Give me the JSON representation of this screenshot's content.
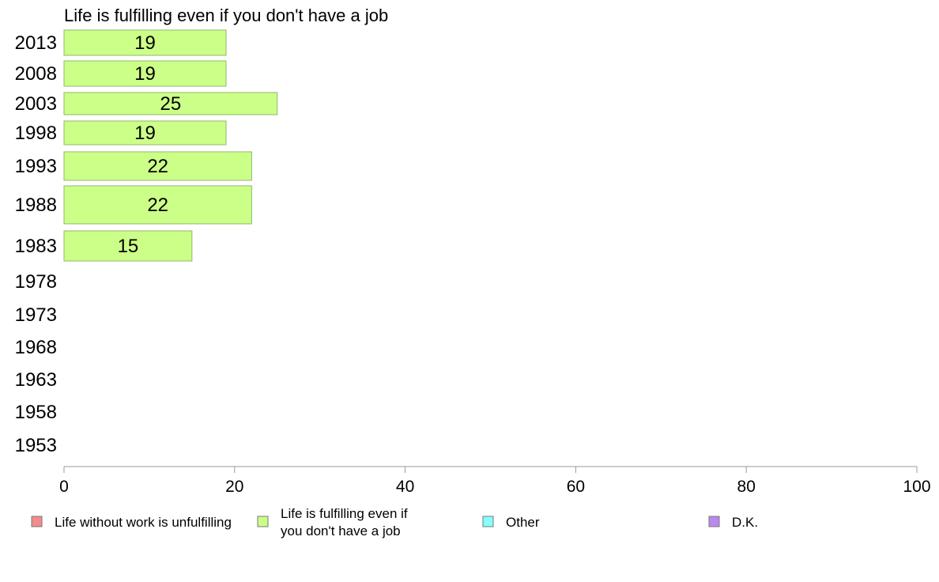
{
  "chart_data": {
    "type": "bar",
    "orientation": "horizontal",
    "title": "Life is fulfilling even if you don't have a job",
    "categories": [
      "2013",
      "2008",
      "2003",
      "1998",
      "1993",
      "1988",
      "1983",
      "1978",
      "1973",
      "1968",
      "1963",
      "1958",
      "1953"
    ],
    "series": [
      {
        "name": "Life is fulfilling even if you don't have a job",
        "values": [
          19,
          19,
          25,
          19,
          22,
          22,
          15,
          null,
          null,
          null,
          null,
          null,
          null
        ],
        "color": "#ccff88"
      }
    ],
    "xlim": [
      0,
      100
    ],
    "xticks": [
      0,
      20,
      40,
      60,
      80,
      100
    ],
    "grid": false,
    "legend": {
      "placement": "bottom",
      "items": [
        {
          "lines": [
            "Life without work is unfulfilling"
          ],
          "color": "#f28b8b"
        },
        {
          "lines": [
            "Life is fulfilling even if",
            "you don't have a job"
          ],
          "color": "#ccff88"
        },
        {
          "lines": [
            "Other"
          ],
          "color": "#88ffff"
        },
        {
          "lines": [
            "D.K."
          ],
          "color": "#bb88ee"
        }
      ]
    }
  }
}
